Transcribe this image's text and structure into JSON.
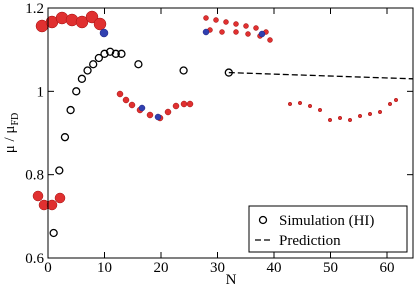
{
  "chart_data": {
    "type": "scatter",
    "xlabel": "N",
    "ylabel": {
      "text": "μ / μ",
      "subscript": "FD"
    },
    "xlim": [
      0,
      64.6
    ],
    "ylim": [
      0.6,
      1.2
    ],
    "xticks": [
      0,
      10,
      20,
      30,
      40,
      50,
      60
    ],
    "yticks": [
      0.6,
      0.8,
      1,
      1.2
    ],
    "legend": "lower right",
    "series": [
      {
        "name": "Simulation (HI)",
        "style": "open-circle",
        "color": "#000000",
        "x": [
          1,
          2,
          3,
          4,
          5,
          6,
          7,
          8,
          9,
          10,
          11,
          12,
          13,
          16,
          24,
          32
        ],
        "values": [
          0.66,
          0.81,
          0.89,
          0.955,
          1.0,
          1.03,
          1.05,
          1.065,
          1.08,
          1.09,
          1.095,
          1.09,
          1.09,
          1.065,
          1.05,
          1.045
        ]
      },
      {
        "name": "Prediction",
        "style": "dashed-line",
        "color": "#000000",
        "x": [
          32,
          64.6
        ],
        "values": [
          1.045,
          1.03
        ]
      }
    ]
  }
}
